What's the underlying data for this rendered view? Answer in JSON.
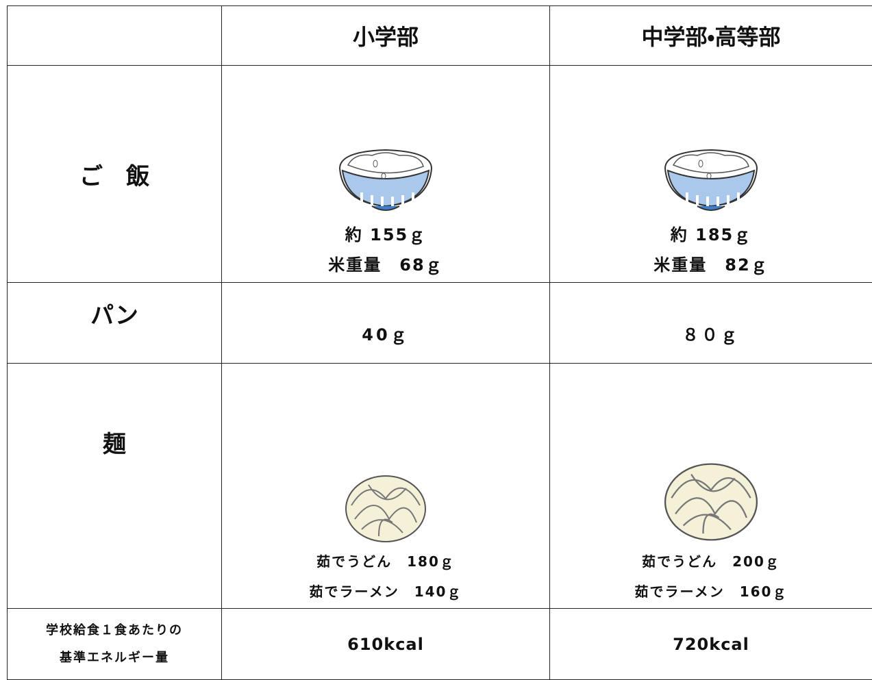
{
  "table": {
    "header": [
      "小学部",
      "中学部・高等部"
    ],
    "rows": [
      {
        "label": "ご　飯",
        "cells": [
          [
            "約 155ｇ",
            "米重量　68ｇ"
          ],
          [
            "約 185ｇ",
            "米重量　82ｇ"
          ]
        ]
      },
      {
        "label": "パン",
        "cells": [
          [
            "40ｇ"
          ],
          [
            "８０ｇ"
          ]
        ]
      },
      {
        "label": "麺",
        "cells": [
          [
            "茹でうどん　180ｇ",
            "茹でラーメン　140ｇ"
          ],
          [
            "茹でうどん　200ｇ",
            "茹でラーメン　160ｇ"
          ]
        ]
      },
      {
        "label": [
          "学校給食１食あたりの",
          "基準エネルギー量"
        ],
        "cells": [
          [
            "610kcal"
          ],
          [
            "720kcal"
          ]
        ]
      }
    ]
  }
}
